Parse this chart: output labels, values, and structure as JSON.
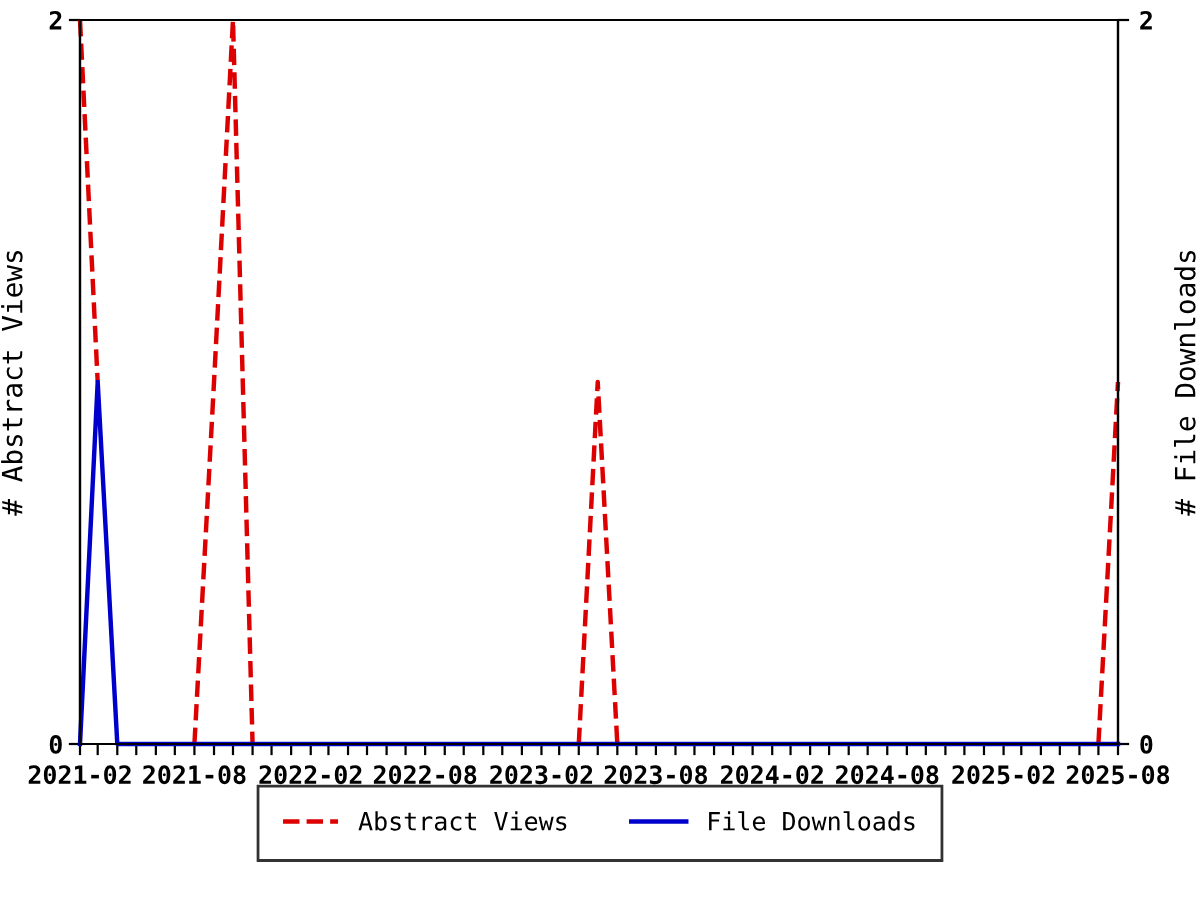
{
  "chart_data": {
    "type": "line",
    "x": [
      "2021-02",
      "2021-03",
      "2021-04",
      "2021-05",
      "2021-06",
      "2021-07",
      "2021-08",
      "2021-09",
      "2021-10",
      "2021-11",
      "2021-12",
      "2022-01",
      "2022-02",
      "2022-03",
      "2022-04",
      "2022-05",
      "2022-06",
      "2022-07",
      "2022-08",
      "2022-09",
      "2022-10",
      "2022-11",
      "2022-12",
      "2023-01",
      "2023-02",
      "2023-03",
      "2023-04",
      "2023-05",
      "2023-06",
      "2023-07",
      "2023-08",
      "2023-09",
      "2023-10",
      "2023-11",
      "2023-12",
      "2024-01",
      "2024-02",
      "2024-03",
      "2024-04",
      "2024-05",
      "2024-06",
      "2024-07",
      "2024-08",
      "2024-09",
      "2024-10",
      "2024-11",
      "2024-12",
      "2025-01",
      "2025-02",
      "2025-03",
      "2025-04",
      "2025-05",
      "2025-06",
      "2025-07",
      "2025-08"
    ],
    "series": [
      {
        "name": "Abstract Views",
        "color": "#dd0000",
        "line_style": "dashed",
        "values": [
          2,
          1,
          null,
          null,
          null,
          null,
          0,
          1,
          2,
          0,
          null,
          null,
          null,
          null,
          null,
          null,
          null,
          null,
          null,
          null,
          null,
          null,
          null,
          null,
          null,
          null,
          0,
          1,
          0,
          null,
          null,
          null,
          null,
          null,
          null,
          null,
          null,
          null,
          null,
          null,
          null,
          null,
          null,
          null,
          null,
          null,
          null,
          null,
          null,
          null,
          null,
          null,
          null,
          0,
          1
        ]
      },
      {
        "name": "File Downloads",
        "color": "#0000cc",
        "line_style": "solid",
        "axis": "y2",
        "values": [
          0,
          1,
          0,
          0,
          0,
          0,
          0,
          0,
          0,
          0,
          0,
          0,
          0,
          0,
          0,
          0,
          0,
          0,
          0,
          0,
          0,
          0,
          0,
          0,
          0,
          0,
          0,
          0,
          0,
          0,
          0,
          0,
          0,
          0,
          0,
          0,
          0,
          0,
          0,
          0,
          0,
          0,
          0,
          0,
          0,
          0,
          0,
          0,
          0,
          0,
          0,
          0,
          0,
          0,
          0
        ]
      }
    ],
    "xlim": [
      "2021-02",
      "2025-08"
    ],
    "xticks": [
      "2021-02",
      {
        "value": "2021-03",
        "label": null
      },
      {
        "value": "2021-04",
        "label": null
      },
      {
        "value": "2021-05",
        "label": null
      },
      {
        "value": "2021-06",
        "label": null
      },
      {
        "value": "2021-07",
        "label": null
      },
      "2021-08",
      {
        "value": "2021-09",
        "label": null
      },
      {
        "value": "2021-10",
        "label": null
      },
      {
        "value": "2021-11",
        "label": null
      },
      {
        "value": "2021-12",
        "label": null
      },
      {
        "value": "2022-01",
        "label": null
      },
      "2022-02",
      {
        "value": "2022-03",
        "label": null
      },
      {
        "value": "2022-04",
        "label": null
      },
      {
        "value": "2022-05",
        "label": null
      },
      {
        "value": "2022-06",
        "label": null
      },
      {
        "value": "2022-07",
        "label": null
      },
      "2022-08",
      {
        "value": "2022-09",
        "label": null
      },
      {
        "value": "2022-10",
        "label": null
      },
      {
        "value": "2022-11",
        "label": null
      },
      {
        "value": "2022-12",
        "label": null
      },
      {
        "value": "2023-01",
        "label": null
      },
      "2023-02",
      {
        "value": "2023-03",
        "label": null
      },
      {
        "value": "2023-04",
        "label": null
      },
      {
        "value": "2023-05",
        "label": null
      },
      {
        "value": "2023-06",
        "label": null
      },
      {
        "value": "2023-07",
        "label": null
      },
      "2023-08",
      {
        "value": "2023-09",
        "label": null
      },
      {
        "value": "2023-10",
        "label": null
      },
      {
        "value": "2023-11",
        "label": null
      },
      {
        "value": "2023-12",
        "label": null
      },
      {
        "value": "2024-01",
        "label": null
      },
      "2024-02",
      {
        "value": "2024-03",
        "label": null
      },
      {
        "value": "2024-04",
        "label": null
      },
      {
        "value": "2024-05",
        "label": null
      },
      {
        "value": "2024-06",
        "label": null
      },
      {
        "value": "2024-07",
        "label": null
      },
      "2024-08",
      {
        "value": "2024-09",
        "label": null
      },
      {
        "value": "2024-10",
        "label": null
      },
      {
        "value": "2024-11",
        "label": null
      },
      {
        "value": "2024-12",
        "label": null
      },
      {
        "value": "2025-01",
        "label": null
      },
      "2025-02",
      {
        "value": "2025-03",
        "label": null
      },
      {
        "value": "2025-04",
        "label": null
      },
      {
        "value": "2025-05",
        "label": null
      },
      {
        "value": "2025-06",
        "label": null
      },
      {
        "value": "2025-07",
        "label": null
      },
      "2025-08"
    ],
    "ylim": [
      0,
      2
    ],
    "yticks": [
      0,
      2
    ],
    "y2lim": [
      0,
      2
    ],
    "y2ticks": [
      0,
      2
    ],
    "ylabel": "# Abstract Views",
    "y2label": "# File Downloads",
    "grid": false,
    "legend": "bottom",
    "marker": "none"
  }
}
